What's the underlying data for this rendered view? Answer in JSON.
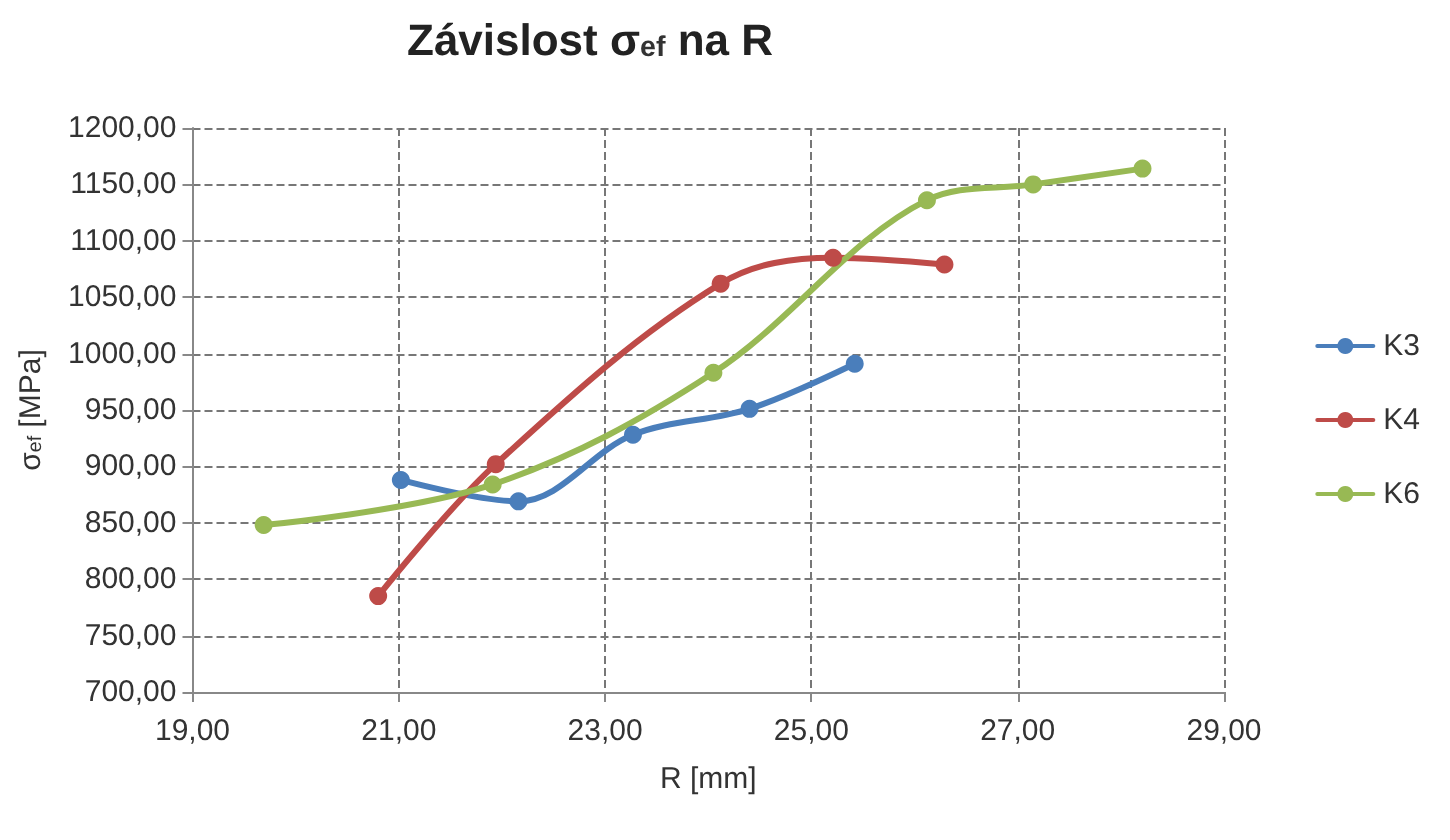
{
  "chart_data": {
    "type": "line",
    "title": "Závislost σ$_{ef}$ na R",
    "xlabel": "R [mm]",
    "ylabel": "σ$_{ef}$ [MPa]",
    "series": [
      {
        "name": "K3",
        "color": "#4a7ebb",
        "x": [
          21.02,
          22.16,
          23.27,
          24.4,
          25.42
        ],
        "values": [
          888,
          869,
          928,
          951,
          991
        ]
      },
      {
        "name": "K4",
        "color": "#be4b48",
        "x": [
          20.8,
          21.94,
          24.12,
          25.21,
          26.29
        ],
        "values": [
          785,
          902,
          1062,
          1085,
          1079
        ]
      },
      {
        "name": "K6",
        "color": "#98b954",
        "x": [
          19.69,
          21.91,
          24.05,
          26.12,
          27.15,
          28.21
        ],
        "values": [
          848,
          884,
          983,
          1136,
          1150,
          1164
        ]
      }
    ],
    "xlim": [
      19,
      29
    ],
    "xticks": [
      {
        "value": 19,
        "label": "19,00"
      },
      {
        "value": 21,
        "label": "21,00"
      },
      {
        "value": 23,
        "label": "23,00"
      },
      {
        "value": 25,
        "label": "25,00"
      },
      {
        "value": 27,
        "label": "27,00"
      },
      {
        "value": 29,
        "label": "29,00"
      }
    ],
    "ylim": [
      700,
      1200
    ],
    "yticks": [
      {
        "value": 700,
        "label": "700,00"
      },
      {
        "value": 750,
        "label": "750,00"
      },
      {
        "value": 800,
        "label": "800,00"
      },
      {
        "value": 850,
        "label": "850,00"
      },
      {
        "value": 900,
        "label": "900,00"
      },
      {
        "value": 950,
        "label": "950,00"
      },
      {
        "value": 1000,
        "label": "1000,00"
      },
      {
        "value": 1050,
        "label": "1050,00"
      },
      {
        "value": 1100,
        "label": "1100,00"
      },
      {
        "value": 1150,
        "label": "1150,00"
      },
      {
        "value": 1200,
        "label": "1200,00"
      }
    ],
    "grid": true,
    "legend": "right",
    "marker": "circle",
    "line_style": "solid"
  }
}
